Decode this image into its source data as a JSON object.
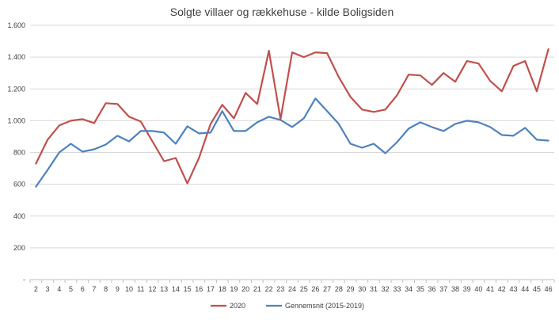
{
  "chart_data": {
    "type": "line",
    "title": "Solgte villaer og rækkehuse - kilde Boligsiden",
    "xlabel": "",
    "ylabel": "",
    "categories": [
      "2",
      "3",
      "4",
      "5",
      "6",
      "7",
      "8",
      "9",
      "10",
      "11",
      "12",
      "13",
      "14",
      "15",
      "16",
      "17",
      "18",
      "19",
      "20",
      "21",
      "22",
      "23",
      "24",
      "25",
      "26",
      "27",
      "28",
      "29",
      "30",
      "31",
      "32",
      "33",
      "34",
      "35",
      "36",
      "37",
      "38",
      "39",
      "40",
      "41",
      "42",
      "43",
      "44",
      "45",
      "46"
    ],
    "ylim": [
      0,
      1600
    ],
    "yticks": [
      0,
      200,
      400,
      600,
      800,
      1000,
      1200,
      1400,
      1600
    ],
    "ytick_labels": [
      "-",
      "200",
      "400",
      "600",
      "800",
      "1.000",
      "1.200",
      "1.400",
      "1.600"
    ],
    "grid": true,
    "legend_position": "bottom",
    "series": [
      {
        "name": "2020",
        "color": "#c0504d",
        "values": [
          730,
          880,
          970,
          1000,
          1010,
          985,
          1110,
          1105,
          1025,
          995,
          870,
          745,
          765,
          605,
          765,
          980,
          1100,
          1015,
          1175,
          1105,
          1440,
          1010,
          1430,
          1400,
          1430,
          1425,
          1275,
          1150,
          1070,
          1055,
          1070,
          1160,
          1290,
          1285,
          1225,
          1300,
          1245,
          1375,
          1360,
          1250,
          1185,
          1345,
          1375,
          1185,
          1450
        ]
      },
      {
        "name": "Gennemsnit (2015-2019)",
        "color": "#4f81bd",
        "values": [
          585,
          690,
          800,
          855,
          805,
          820,
          850,
          905,
          870,
          935,
          935,
          925,
          855,
          965,
          920,
          925,
          1060,
          935,
          935,
          990,
          1025,
          1005,
          960,
          1015,
          1140,
          1060,
          980,
          855,
          830,
          855,
          795,
          865,
          950,
          990,
          960,
          935,
          980,
          1000,
          990,
          960,
          910,
          905,
          955,
          880,
          875
        ]
      }
    ]
  }
}
